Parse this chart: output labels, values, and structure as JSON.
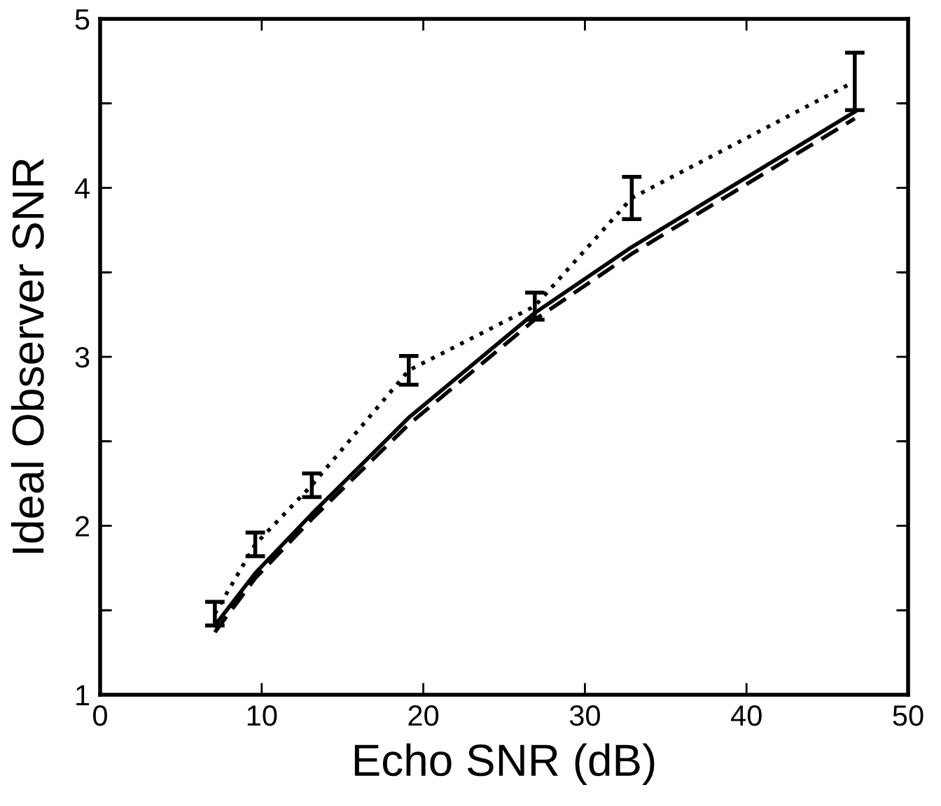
{
  "chart_data": {
    "type": "line",
    "xlabel": "Echo SNR (dB)",
    "ylabel": "Ideal Observer SNR",
    "x": [
      7.1,
      9.6,
      13.1,
      19.1,
      26.9,
      32.9,
      46.7
    ],
    "series": [
      {
        "color": "#000000",
        "line_style": "dotted",
        "values": [
          1.48,
          1.89,
          2.24,
          2.92,
          3.3,
          3.94,
          4.63
        ],
        "errors": [
          0.07,
          0.07,
          0.07,
          0.085,
          0.08,
          0.125,
          0.17
        ]
      },
      {
        "color": "#000000",
        "line_style": "solid",
        "values": [
          1.41,
          1.72,
          2.07,
          2.64,
          3.26,
          3.65,
          4.45
        ]
      },
      {
        "color": "#000000",
        "line_style": "dashed",
        "values": [
          1.37,
          1.69,
          2.04,
          2.6,
          3.22,
          3.61,
          4.41
        ]
      }
    ],
    "xlim": [
      0,
      50
    ],
    "xticks": [
      0,
      10,
      20,
      30,
      40,
      50
    ],
    "ylim": [
      1,
      5
    ],
    "yticks": [
      1,
      {
        "value": 1.5,
        "label": null
      },
      2,
      {
        "value": 2.5,
        "label": null
      },
      3,
      {
        "value": 3.5,
        "label": null
      },
      4,
      {
        "value": 4.5,
        "label": null
      },
      5
    ],
    "grid": false,
    "legend": false,
    "marker": "none"
  }
}
